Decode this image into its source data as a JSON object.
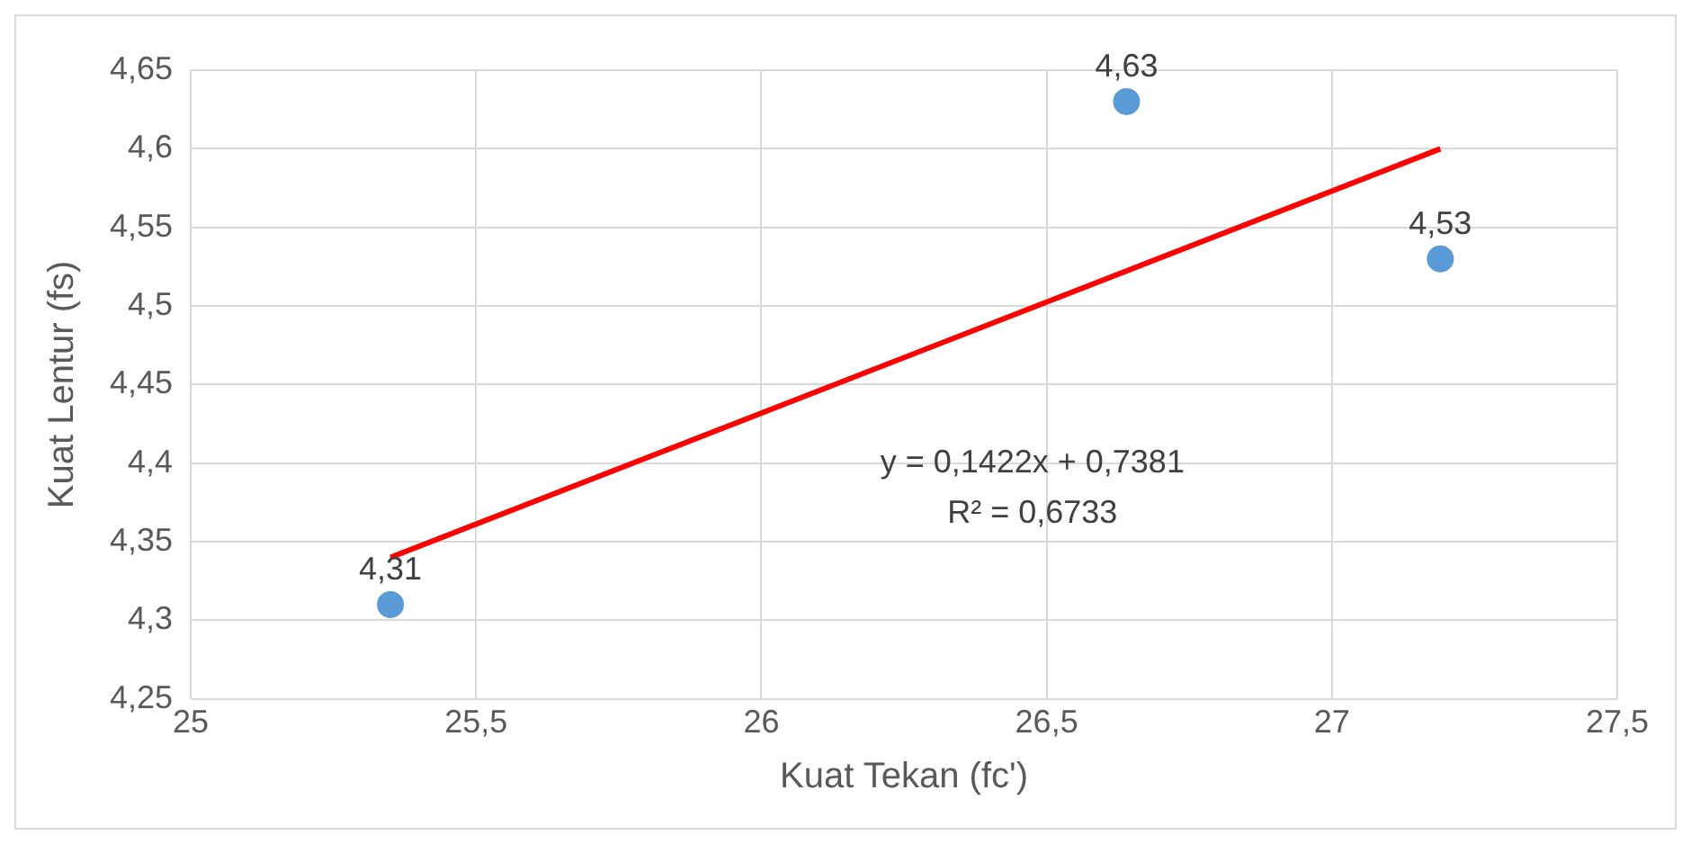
{
  "chart_data": {
    "type": "scatter",
    "xlabel": "Kuat Tekan (fc')",
    "ylabel": "Kuat Lentur (fs)",
    "series": [
      {
        "type": "scatter",
        "color": "#5b9bd5",
        "x": [
          25.35,
          26.64,
          27.19
        ],
        "values": [
          4.31,
          4.63,
          4.53
        ],
        "value_labels": [
          "4,31",
          "4,63",
          "4,53"
        ]
      },
      {
        "type": "line",
        "color": "#ff0000",
        "x": [
          25.35,
          27.19
        ],
        "values": [
          4.34,
          4.6
        ],
        "marker": "none"
      }
    ],
    "xlim": [
      25,
      27.5
    ],
    "xticks": [
      25,
      {
        "value": 25.5,
        "label": "25,5"
      },
      26,
      {
        "value": 26.5,
        "label": "26,5"
      },
      27,
      {
        "value": 27.5,
        "label": "27,5"
      }
    ],
    "ylim": [
      4.25,
      4.65
    ],
    "yticks": [
      {
        "value": 4.25,
        "label": "4,25"
      },
      {
        "value": 4.3,
        "label": "4,3"
      },
      {
        "value": 4.35,
        "label": "4,35"
      },
      {
        "value": 4.4,
        "label": "4,4"
      },
      {
        "value": 4.45,
        "label": "4,45"
      },
      {
        "value": 4.5,
        "label": "4,5"
      },
      {
        "value": 4.55,
        "label": "4,55"
      },
      {
        "value": 4.6,
        "label": "4,6"
      },
      {
        "value": 4.65,
        "label": "4,65"
      }
    ],
    "annotations": [
      "y = 0,1422x + 0,7381",
      "R² = 0,6733"
    ],
    "grid": true,
    "legend": false,
    "marker": "circle",
    "line_style": "solid"
  }
}
